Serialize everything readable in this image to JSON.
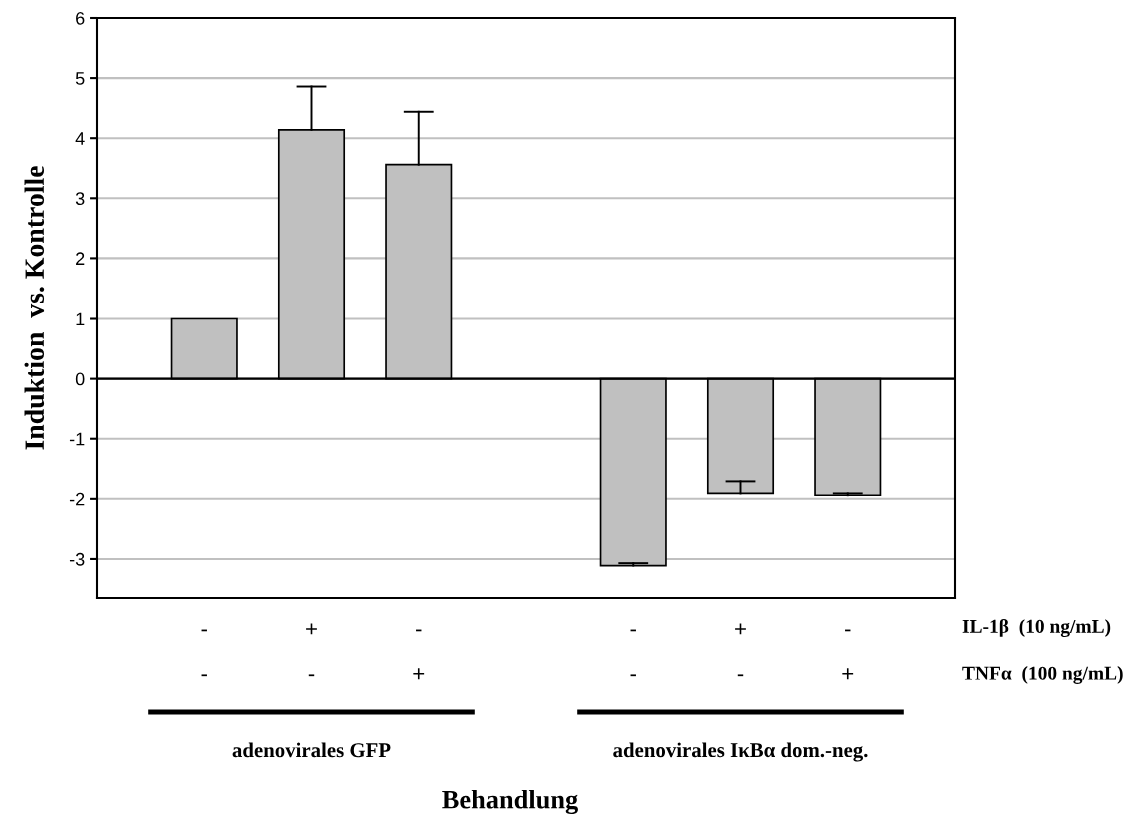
{
  "chart_data": {
    "type": "bar",
    "ylabel": "Induktion  vs. Kontrolle",
    "categories": [
      "-\n-",
      "+\n-",
      "-\n+",
      null,
      "-\n-",
      "+\n-",
      "-\n+"
    ],
    "values": [
      1.0,
      4.14,
      3.56,
      null,
      -3.11,
      -1.91,
      -1.94
    ],
    "errors": [
      null,
      [
        4.14,
        4.86
      ],
      [
        3.56,
        4.44
      ],
      null,
      [
        -3.11,
        -3.07
      ],
      [
        -1.91,
        -1.71
      ],
      [
        -1.94,
        -1.91
      ]
    ],
    "color": "#c0c0c0",
    "ylim": [
      -3.65,
      6
    ],
    "yticks": [
      -3,
      -2,
      -1,
      0,
      1,
      2,
      3,
      4,
      5,
      6
    ],
    "grid": "y",
    "annotations": [
      "IL-1β  (10 ng/mL)",
      "TNFα  (100 ng/mL)",
      "adenovirales GFP",
      "adenovirales IκBα dom.-neg.",
      "Behandlung"
    ]
  }
}
